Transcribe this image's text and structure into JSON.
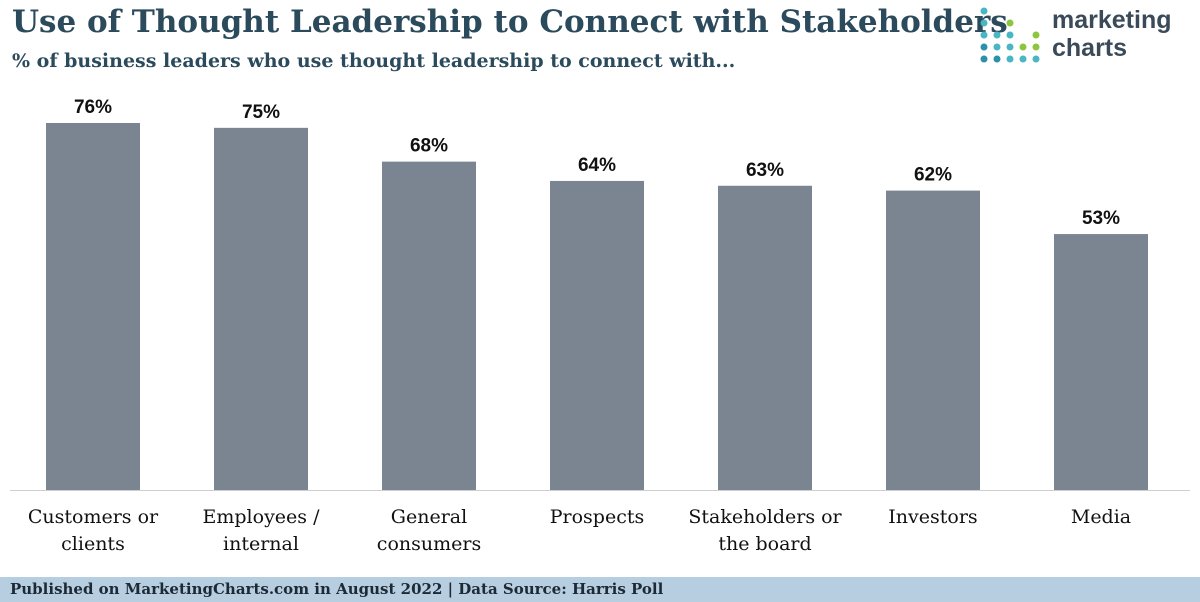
{
  "header": {
    "title": "Use of Thought Leadership to Connect with Stakeholders",
    "subtitle": "% of business leaders who use thought leadership to connect with..."
  },
  "logo": {
    "line1": "marketing",
    "line2": "charts",
    "colors": [
      "#4ab5c4",
      "#8cc63f",
      "#2d8fa8"
    ]
  },
  "footer": {
    "text": "Published on MarketingCharts.com in August 2022 | Data Source: Harris Poll"
  },
  "colors": {
    "bar": "#7a8591",
    "title": "#2b4a5c",
    "footer_bg": "#b7cde0"
  },
  "chart_data": {
    "type": "bar",
    "title": "Use of Thought Leadership to Connect with Stakeholders",
    "subtitle": "% of business leaders who use thought leadership to connect with...",
    "categories": [
      [
        "Customers or",
        "clients"
      ],
      [
        "Employees /",
        "internal"
      ],
      [
        "General",
        "consumers"
      ],
      [
        "Prospects"
      ],
      [
        "Stakeholders or",
        "the board"
      ],
      [
        "Investors"
      ],
      [
        "Media"
      ]
    ],
    "values": [
      76,
      75,
      68,
      64,
      63,
      62,
      53
    ],
    "data_labels": [
      "76%",
      "75%",
      "68%",
      "64%",
      "63%",
      "62%",
      "53%"
    ],
    "xlabel": "",
    "ylabel": "",
    "ylim": [
      0,
      76
    ],
    "grid": false,
    "legend": "none"
  }
}
